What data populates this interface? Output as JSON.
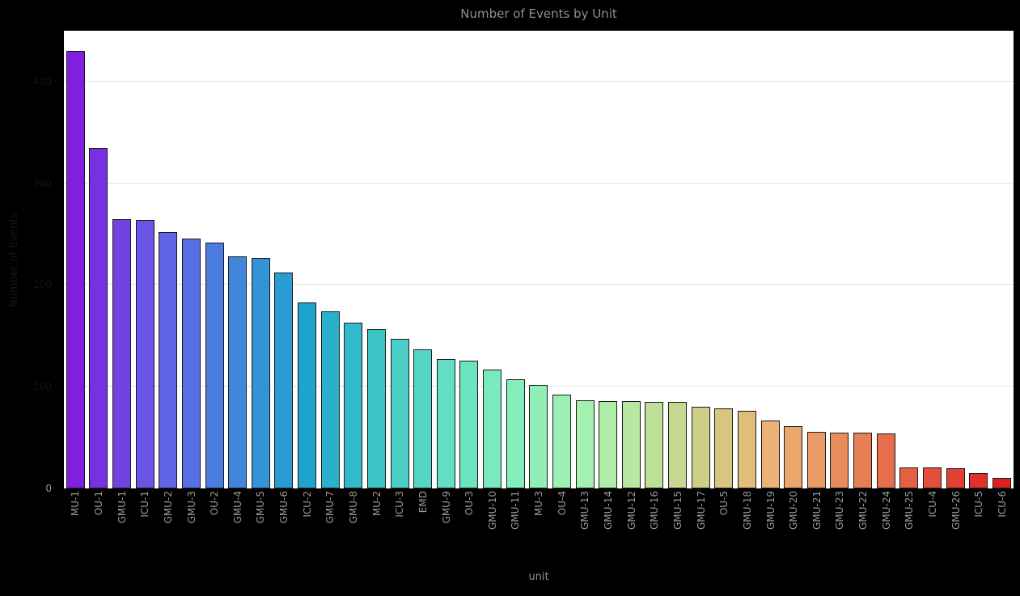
{
  "page": {
    "background": "#000000",
    "plot_background": "#ffffff"
  },
  "chart_data": {
    "type": "bar",
    "title": "Number of Events by Unit",
    "xlabel": "unit",
    "ylabel": "Number of Events",
    "categories": [
      "MU-1",
      "OU-1",
      "GMU-1",
      "ICU-1",
      "GMU-2",
      "GMU-3",
      "OU-2",
      "GMU-4",
      "GMU-5",
      "GMU-6",
      "ICU-2",
      "GMU-7",
      "GMU-8",
      "MU-2",
      "ICU-3",
      "EMD",
      "GMU-9",
      "OU-3",
      "GMU-10",
      "GMU-11",
      "MU-3",
      "OU-4",
      "GMU-13",
      "GMU-14",
      "GMU-12",
      "GMU-16",
      "GMU-15",
      "GMU-17",
      "OU-5",
      "GMU-18",
      "GMU-19",
      "GMU-20",
      "GMU-21",
      "GMU-23",
      "GMU-22",
      "GMU-24",
      "GMU-25",
      "ICU-4",
      "GMU-26",
      "ICU-5",
      "ICU-6"
    ],
    "values": [
      430,
      335,
      265,
      264,
      252,
      246,
      242,
      228,
      227,
      212,
      183,
      174,
      163,
      157,
      147,
      137,
      127,
      126,
      117,
      107,
      102,
      92,
      87,
      86,
      86,
      85,
      85,
      80,
      79,
      76,
      67,
      61,
      56,
      55,
      55,
      54,
      21,
      21,
      20,
      15,
      10
    ],
    "colors": [
      "#8020DF",
      "#7831E1",
      "#7143E3",
      "#6A54E5",
      "#6264E6",
      "#5770E3",
      "#4C7CDF",
      "#4087DC",
      "#3592D7",
      "#299CD3",
      "#1DA5CE",
      "#28B0CC",
      "#33BACA",
      "#3DC4C7",
      "#49CDC6",
      "#55D6C4",
      "#61DEC3",
      "#6DE4C0",
      "#79E9BE",
      "#84EDBB",
      "#8FEFB7",
      "#9BF0B3",
      "#A5F0AF",
      "#AFEDA9",
      "#B7E7A1",
      "#BFE099",
      "#C6D791",
      "#CDCE88",
      "#D7C682",
      "#E1BD7C",
      "#EBB375",
      "#EAA76D",
      "#E99A65",
      "#E88C5C",
      "#E77E54",
      "#E56F4B",
      "#E46043",
      "#E3503A",
      "#E24031",
      "#E03029",
      "#DF2020"
    ],
    "ylim": [
      0,
      450
    ],
    "yticks": [
      400,
      300,
      200,
      100,
      0
    ],
    "grid": true,
    "legend": false,
    "bar_edge_color": "#1a1a1a",
    "grid_color": "#e0e0e0",
    "text_color": "#9a9a9a",
    "hidden_text_color": "#141414"
  }
}
